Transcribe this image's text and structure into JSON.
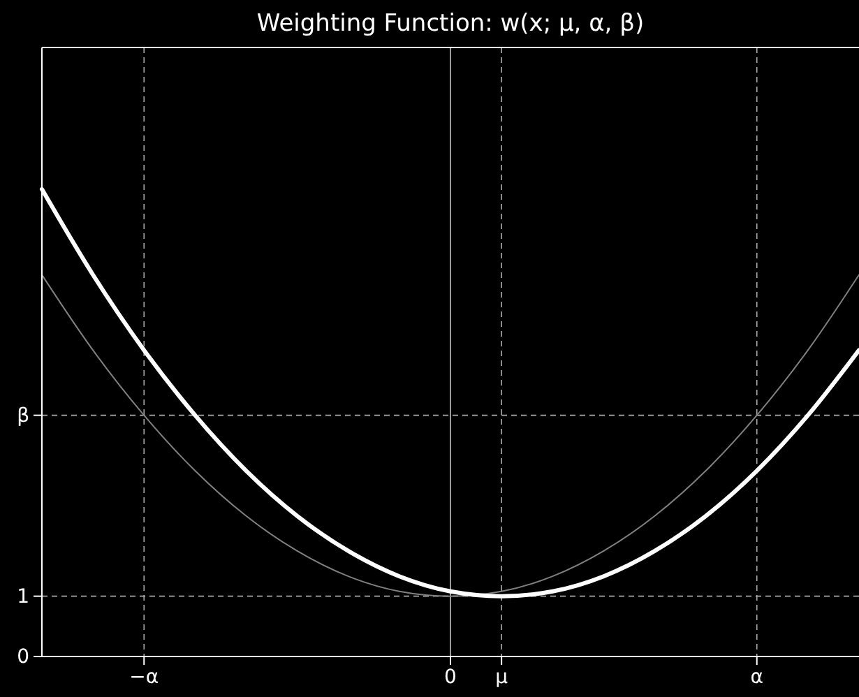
{
  "chart_data": {
    "type": "line",
    "title": "Weighting Function: w(x; μ, α, β)",
    "categories": [
      null,
      null,
      "−α",
      null,
      null,
      null,
      null,
      null,
      "0",
      "μ",
      null,
      null,
      null,
      null,
      "α",
      null,
      null
    ],
    "series": [
      {
        "color": "#808080",
        "values": [
          6.33,
          5.08,
          4,
          3.08,
          2.33,
          1.75,
          1.33,
          1.08,
          1,
          1.08,
          1.33,
          1.75,
          2.33,
          3.08,
          4,
          5.08,
          6.33
        ]
      },
      {
        "color": "#ffffff",
        "values": [
          7.75,
          6.33,
          5.08,
          4,
          3.08,
          2.33,
          1.75,
          1.33,
          1.08,
          1,
          1.08,
          1.33,
          1.75,
          2.33,
          3.08,
          4,
          5.08
        ]
      }
    ],
    "ylim": [
      0,
      10.1
    ],
    "yticks": [
      0,
      1,
      {
        "value": 4,
        "label": "β"
      }
    ],
    "grid": true,
    "line_style": "solid",
    "marker": "none",
    "ref_lines": [
      {
        "axis": "x",
        "value": "0",
        "color": "#9a9a9a",
        "line_style": "solid"
      }
    ]
  }
}
